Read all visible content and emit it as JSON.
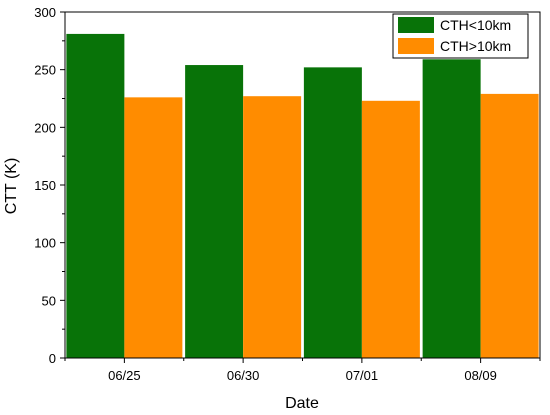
{
  "chart_data": {
    "type": "bar",
    "title": "",
    "xlabel": "Date",
    "ylabel": "CTT (K)",
    "categories": [
      "06/25",
      "06/30",
      "07/01",
      "08/09"
    ],
    "series": [
      {
        "name": "CTH<10km",
        "color": "#087308",
        "values": [
          281,
          254,
          252,
          259
        ]
      },
      {
        "name": "CTH>10km",
        "color": "#FF8C00",
        "values": [
          226,
          227,
          223,
          229
        ]
      }
    ],
    "ylim": [
      0,
      300
    ],
    "yticks": [
      0,
      50,
      100,
      150,
      200,
      250,
      300
    ],
    "grid": false,
    "legend_position": "top-right"
  }
}
